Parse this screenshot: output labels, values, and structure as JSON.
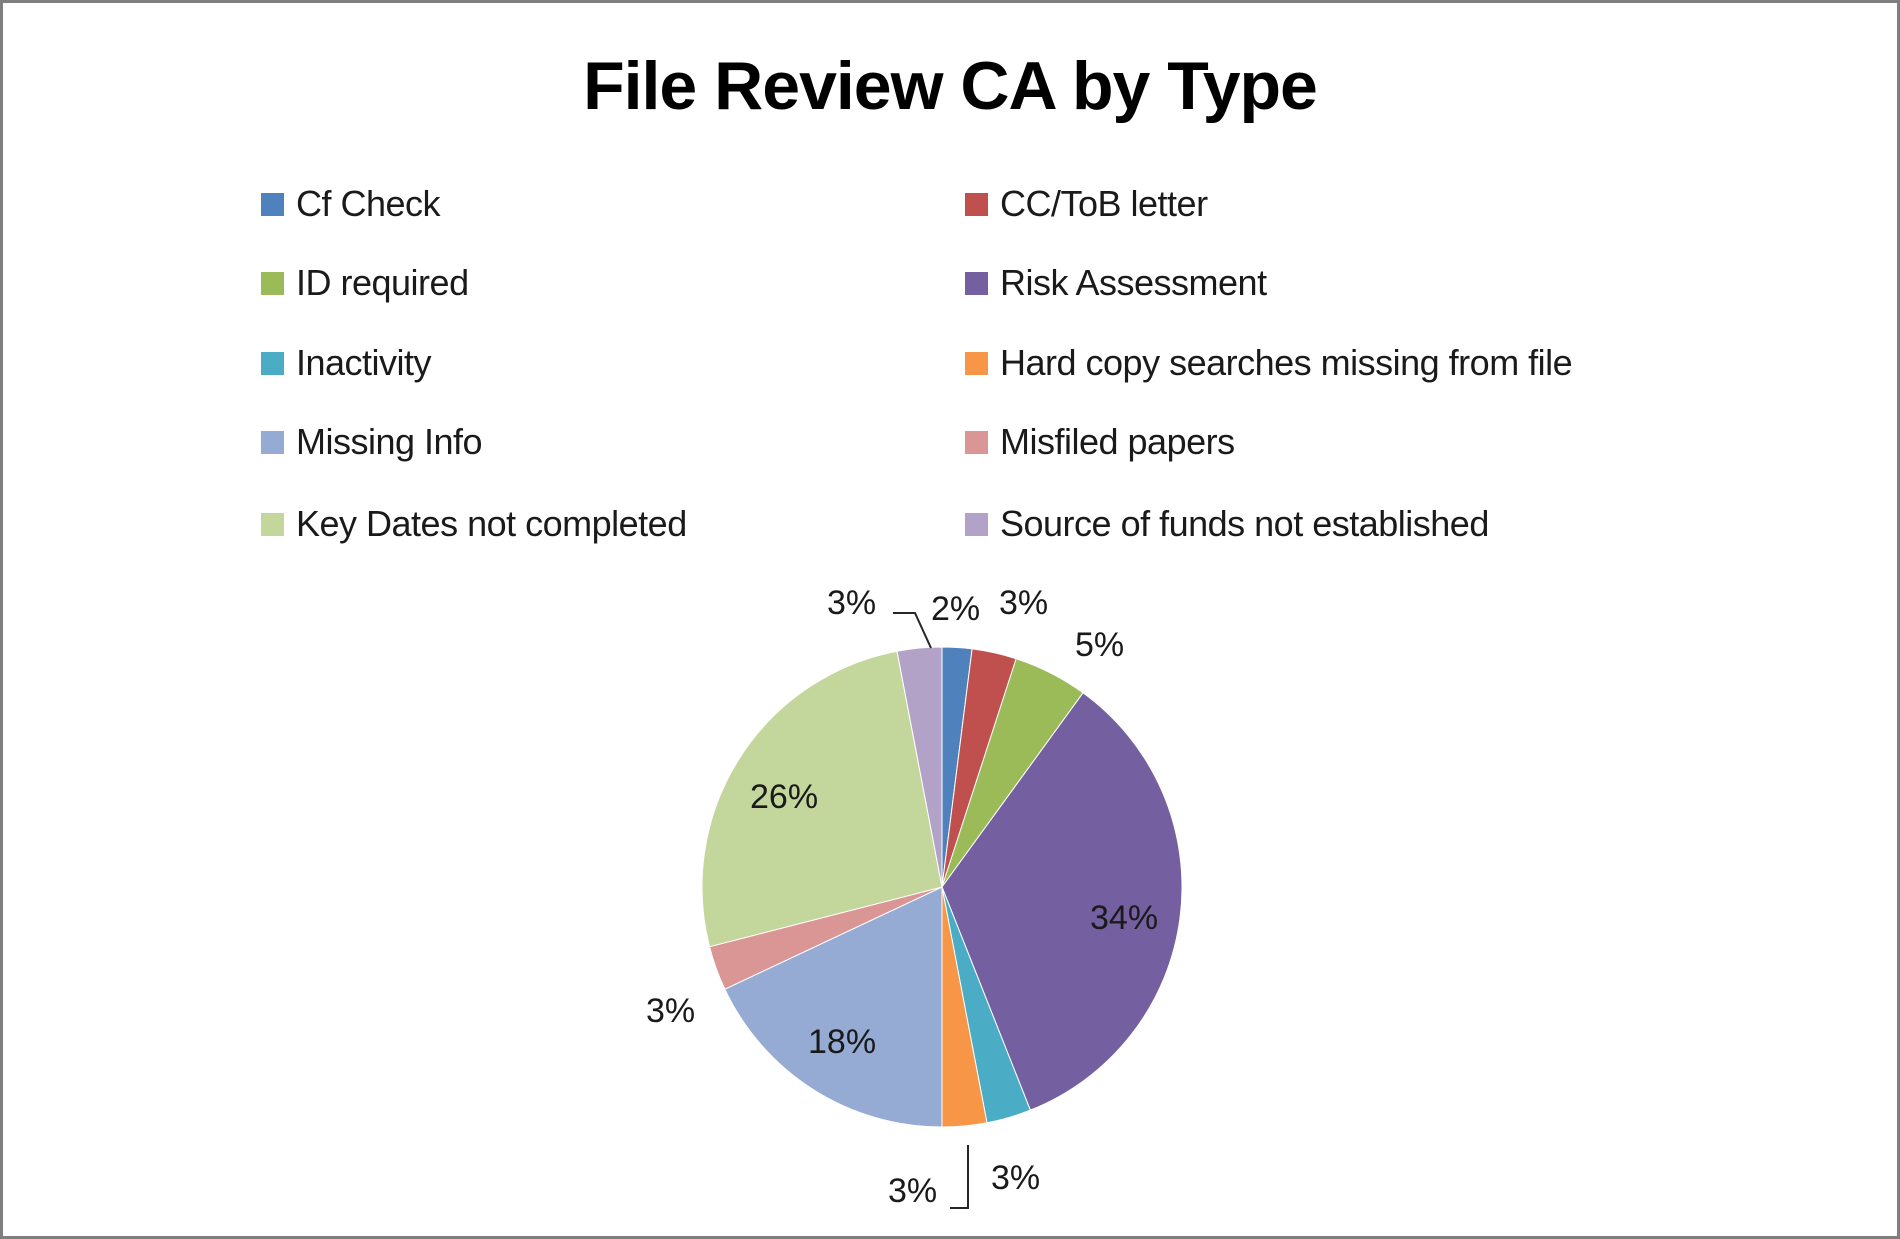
{
  "chart_data": {
    "type": "pie",
    "title": "File Review CA by Type",
    "legend_position": "top",
    "categories": [
      "Cf Check",
      "CC/ToB letter",
      "ID required",
      "Risk Assessment",
      "Inactivity",
      "Hard copy searches missing from file",
      "Missing Info",
      "Misfiled papers",
      "Key Dates not completed",
      "Source of funds not established"
    ],
    "values": [
      2,
      3,
      5,
      34,
      3,
      3,
      18,
      3,
      26,
      3
    ],
    "value_unit": "%",
    "data_labels": [
      "2%",
      "3%",
      "5%",
      "34%",
      "3%",
      "3%",
      "18%",
      "3%",
      "26%",
      "3%"
    ],
    "colors": [
      "#4F81BD",
      "#C0504D",
      "#9BBB59",
      "#7460A0",
      "#4BACC6",
      "#F79646",
      "#95ABD3",
      "#D99694",
      "#C3D69B",
      "#B3A2C7"
    ]
  },
  "title": "File Review CA by Type",
  "legend": {
    "items": [
      {
        "label": "Cf Check",
        "color": "#4F81BD"
      },
      {
        "label": "CC/ToB letter",
        "color": "#C0504D"
      },
      {
        "label": "ID required",
        "color": "#9BBB59"
      },
      {
        "label": "Risk Assessment",
        "color": "#7460A0"
      },
      {
        "label": "Inactivity",
        "color": "#4BACC6"
      },
      {
        "label": "Hard copy searches missing from file",
        "color": "#F79646"
      },
      {
        "label": "Missing Info",
        "color": "#95ABD3"
      },
      {
        "label": "Misfiled papers",
        "color": "#D99694"
      },
      {
        "label": "Key Dates not completed",
        "color": "#C3D69B"
      },
      {
        "label": "Source of funds not established",
        "color": "#B3A2C7"
      }
    ]
  }
}
